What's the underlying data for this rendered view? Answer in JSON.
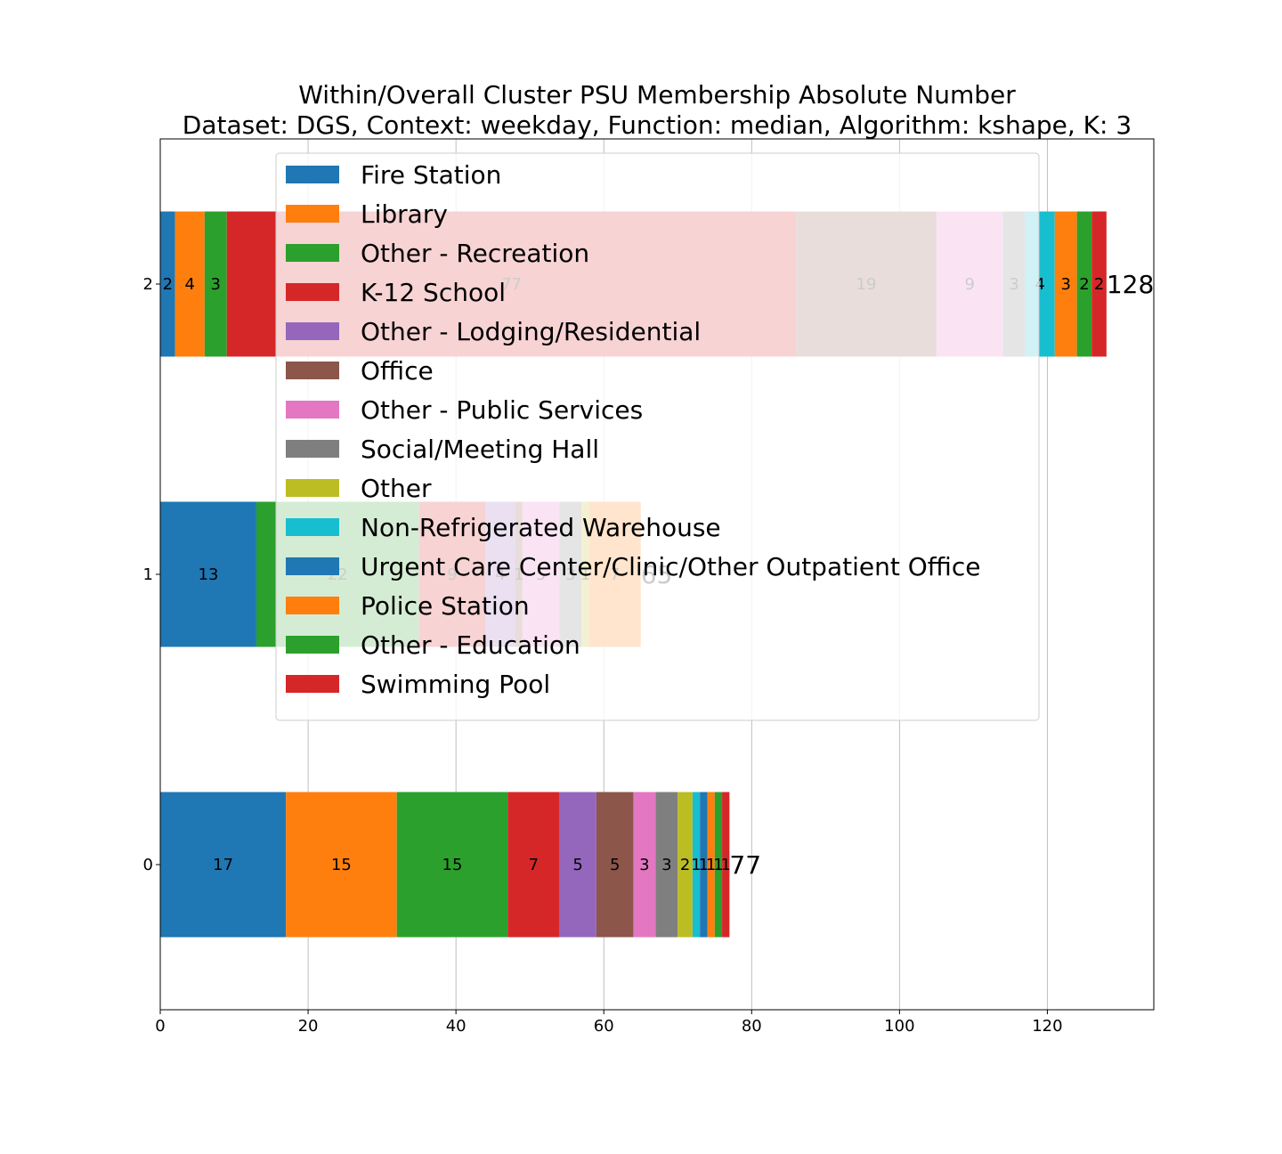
{
  "chart_data": {
    "type": "bar",
    "orientation": "horizontal",
    "stacked": true,
    "title": [
      "Within/Overall Cluster PSU Membership Absolute Number",
      "Dataset: DGS, Context: weekday, Function: median, Algorithm: kshape, K: 3"
    ],
    "xlabel": "",
    "ylabel": "",
    "xlim": [
      0,
      134.4
    ],
    "xticks": [
      0,
      20,
      40,
      60,
      80,
      100,
      120
    ],
    "grid": true,
    "legend_position": "upper-center",
    "categories": [
      "0",
      "1",
      "2"
    ],
    "series": [
      {
        "name": "Fire Station",
        "color": "#1f77b4",
        "values": [
          17,
          13,
          2
        ]
      },
      {
        "name": "Library",
        "color": "#ff7f0e",
        "values": [
          15,
          0,
          4
        ]
      },
      {
        "name": "Other - Recreation",
        "color": "#2ca02c",
        "values": [
          15,
          22,
          3
        ]
      },
      {
        "name": "K-12 School",
        "color": "#d62728",
        "values": [
          7,
          9,
          77
        ]
      },
      {
        "name": "Other - Lodging/Residential",
        "color": "#9467bd",
        "values": [
          5,
          4,
          0
        ]
      },
      {
        "name": "Office",
        "color": "#8c564b",
        "values": [
          5,
          1,
          19
        ]
      },
      {
        "name": "Other - Public Services",
        "color": "#e377c2",
        "values": [
          3,
          5,
          9
        ]
      },
      {
        "name": "Social/Meeting Hall",
        "color": "#7f7f7f",
        "values": [
          3,
          3,
          3
        ]
      },
      {
        "name": "Other",
        "color": "#bcbd22",
        "values": [
          2,
          1,
          0
        ]
      },
      {
        "name": "Non-Refrigerated Warehouse",
        "color": "#17becf",
        "values": [
          1,
          0,
          4
        ]
      },
      {
        "name": "Urgent Care Center/Clinic/Other Outpatient Office",
        "color": "#1f77b4",
        "values": [
          1,
          0,
          0
        ]
      },
      {
        "name": "Police Station",
        "color": "#ff7f0e",
        "values": [
          1,
          7,
          3
        ]
      },
      {
        "name": "Other - Education",
        "color": "#2ca02c",
        "values": [
          1,
          0,
          2
        ]
      },
      {
        "name": "Swimming Pool",
        "color": "#d62728",
        "values": [
          1,
          0,
          2
        ]
      }
    ],
    "totals": [
      77,
      65,
      128
    ]
  }
}
